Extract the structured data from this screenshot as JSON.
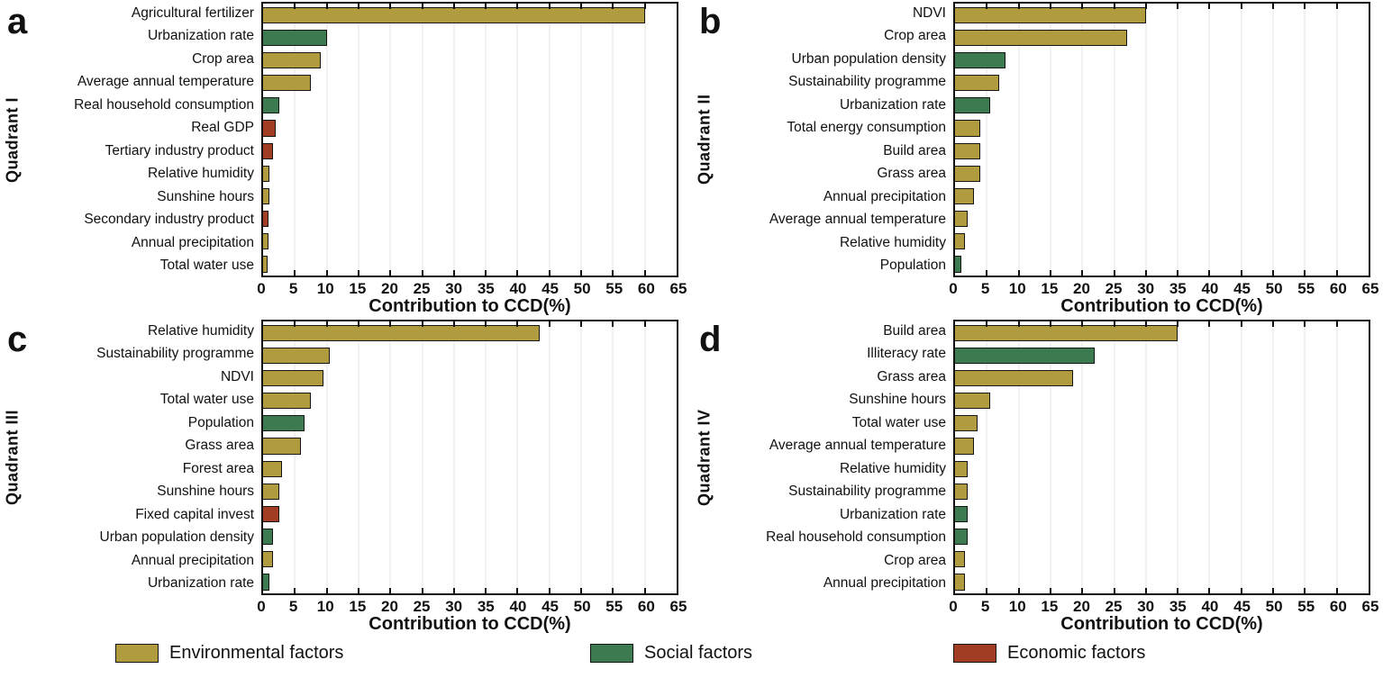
{
  "figure": {
    "xlabel": "Contribution to CCD(%)"
  },
  "colors": {
    "environmental": "#b09c3e",
    "social": "#3c7a4f",
    "economic": "#a13d22",
    "bar_border": "#151515"
  },
  "legend": {
    "environmental_label": "Environmental factors",
    "social_label": "Social factors",
    "economic_label": "Economic factors"
  },
  "chart_data": [
    {
      "type": "bar",
      "orientation": "horizontal",
      "panel": "a",
      "quadrant_label": "Quadrant I",
      "xlabel": "Contribution to CCD(%)",
      "xlim": [
        0,
        65
      ],
      "x_ticks": [
        0,
        5,
        10,
        15,
        20,
        25,
        30,
        35,
        40,
        45,
        50,
        55,
        60,
        65
      ],
      "grid": true,
      "categories": [
        "Agricultural fertilizer",
        "Urbanization rate",
        "Crop area",
        "Average annual temperature",
        "Real household consumption",
        "Real GDP",
        "Tertiary industry product",
        "Relative humidity",
        "Sunshine hours",
        "Secondary industry product",
        "Annual precipitation",
        "Total water use"
      ],
      "values": [
        60,
        10,
        9,
        7.5,
        2.5,
        2,
        1.5,
        1,
        1,
        0.8,
        0.8,
        0.7
      ],
      "factor_types": [
        "environmental",
        "social",
        "environmental",
        "environmental",
        "social",
        "economic",
        "economic",
        "environmental",
        "environmental",
        "economic",
        "environmental",
        "environmental"
      ]
    },
    {
      "type": "bar",
      "orientation": "horizontal",
      "panel": "b",
      "quadrant_label": "Quadrant II",
      "xlabel": "Contribution to CCD(%)",
      "xlim": [
        0,
        65
      ],
      "x_ticks": [
        0,
        5,
        10,
        15,
        20,
        25,
        30,
        35,
        40,
        45,
        50,
        55,
        60,
        65
      ],
      "grid": true,
      "categories": [
        "NDVI",
        "Crop area",
        "Urban population density",
        "Sustainability programme",
        "Urbanization rate",
        "Total energy consumption",
        "Build area",
        "Grass area",
        "Annual precipitation",
        "Average annual temperature",
        "Relative humidity",
        "Population"
      ],
      "values": [
        30,
        27,
        8,
        7,
        5.5,
        4,
        4,
        4,
        3,
        2,
        1.5,
        1
      ],
      "factor_types": [
        "environmental",
        "environmental",
        "social",
        "environmental",
        "social",
        "environmental",
        "environmental",
        "environmental",
        "environmental",
        "environmental",
        "environmental",
        "social"
      ]
    },
    {
      "type": "bar",
      "orientation": "horizontal",
      "panel": "c",
      "quadrant_label": "Quadrant III",
      "xlabel": "Contribution to CCD(%)",
      "xlim": [
        0,
        65
      ],
      "x_ticks": [
        0,
        5,
        10,
        15,
        20,
        25,
        30,
        35,
        40,
        45,
        50,
        55,
        60,
        65
      ],
      "grid": true,
      "categories": [
        "Relative humidity",
        "Sustainability programme",
        "NDVI",
        "Total water use",
        "Population",
        "Grass area",
        "Forest area",
        "Sunshine hours",
        "Fixed capital invest",
        "Urban population density",
        "Annual precipitation",
        "Urbanization rate"
      ],
      "values": [
        43.5,
        10.5,
        9.5,
        7.5,
        6.5,
        6,
        3,
        2.5,
        2.5,
        1.5,
        1.5,
        1
      ],
      "factor_types": [
        "environmental",
        "environmental",
        "environmental",
        "environmental",
        "social",
        "environmental",
        "environmental",
        "environmental",
        "economic",
        "social",
        "environmental",
        "social"
      ]
    },
    {
      "type": "bar",
      "orientation": "horizontal",
      "panel": "d",
      "quadrant_label": "Quadrant IV",
      "xlabel": "Contribution to CCD(%)",
      "xlim": [
        0,
        65
      ],
      "x_ticks": [
        0,
        5,
        10,
        15,
        20,
        25,
        30,
        35,
        40,
        45,
        50,
        55,
        60,
        65
      ],
      "grid": true,
      "categories": [
        "Build area",
        "Illiteracy rate",
        "Grass area",
        "Sunshine hours",
        "Total water use",
        "Average annual temperature",
        "Relative humidity",
        "Sustainability programme",
        "Urbanization rate",
        "Real household consumption",
        "Crop area",
        "Annual precipitation"
      ],
      "values": [
        35,
        22,
        18.5,
        5.5,
        3.5,
        3,
        2,
        2,
        2,
        2,
        1.5,
        1.5
      ],
      "factor_types": [
        "environmental",
        "social",
        "environmental",
        "environmental",
        "environmental",
        "environmental",
        "environmental",
        "environmental",
        "social",
        "social",
        "environmental",
        "environmental"
      ]
    }
  ]
}
